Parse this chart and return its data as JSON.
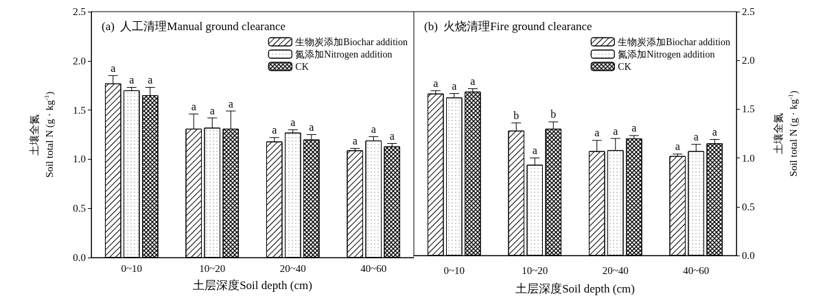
{
  "chart_data": [
    {
      "type": "bar",
      "title": "(a)  人工清理Manual ground clearance",
      "xlabel": "土层深度Soil depth (cm)",
      "ylabel": "土壤全氮\nSoil total N (g · kg$^{-1}$)",
      "categories": [
        "0~10",
        "10~20",
        "20~40",
        "40~60"
      ],
      "series": [
        {
          "name": "生物炭添加Biochar addition",
          "color": "#ffffff",
          "values": [
            1.77,
            1.31,
            1.18,
            1.09
          ],
          "errors": [
            0.08,
            0.15,
            0.04,
            0.02
          ],
          "value_labels": [
            "a",
            "a",
            "a",
            "a"
          ]
        },
        {
          "name": "氮添加Nitrogen addition",
          "color": "#ffffff",
          "values": [
            1.7,
            1.32,
            1.27,
            1.19
          ],
          "errors": [
            0.03,
            0.1,
            0.03,
            0.04
          ],
          "value_labels": [
            "a",
            "a",
            "a",
            "a"
          ]
        },
        {
          "name": "CK",
          "color": "#ffffff",
          "values": [
            1.65,
            1.31,
            1.2,
            1.13
          ],
          "errors": [
            0.08,
            0.18,
            0.05,
            0.03
          ],
          "value_labels": [
            "a",
            "a",
            "a",
            "a"
          ]
        }
      ],
      "ylim": [
        0,
        2.5
      ],
      "yticks": [
        {
          "value": 0,
          "label": "0.0"
        },
        {
          "value": 0.5,
          "label": "0.5"
        },
        {
          "value": 1,
          "label": "1.0"
        },
        {
          "value": 1.5,
          "label": "1.5"
        },
        {
          "value": 2,
          "label": "2.0"
        },
        {
          "value": 2.5,
          "label": "2.5"
        }
      ],
      "legend": "top right",
      "grid": false
    },
    {
      "type": "bar",
      "title": "(b)  火烧清理Fire ground clearance",
      "xlabel": "土层深度Soil depth (cm)",
      "y2label": "土壤全氮\nSoil total N (g · kg$^{-1}$)",
      "categories": [
        "0~10",
        "10~20",
        "20~40",
        "40~60"
      ],
      "series": [
        {
          "name": "生物炭添加Biochar addition",
          "color": "#ffffff",
          "axis": "y2",
          "values": [
            1.66,
            1.28,
            1.07,
            1.02
          ],
          "errors": [
            0.03,
            0.08,
            0.11,
            0.02
          ],
          "value_labels": [
            "a",
            "b",
            "a",
            "a"
          ]
        },
        {
          "name": "氮添加Nitrogen addition",
          "color": "#ffffff",
          "axis": "y2",
          "values": [
            1.62,
            0.93,
            1.08,
            1.07
          ],
          "errors": [
            0.04,
            0.07,
            0.12,
            0.07
          ],
          "value_labels": [
            "a",
            "a",
            "a",
            "a"
          ]
        },
        {
          "name": "CK",
          "color": "#ffffff",
          "axis": "y2",
          "values": [
            1.68,
            1.3,
            1.2,
            1.15
          ],
          "errors": [
            0.03,
            0.07,
            0.03,
            0.04
          ],
          "value_labels": [
            "a",
            "b",
            "a",
            "a"
          ]
        }
      ],
      "y2lim": [
        0,
        2.5
      ],
      "y2ticks": [
        {
          "value": 0,
          "label": "0.0"
        },
        {
          "value": 0.5,
          "label": "0.5"
        },
        {
          "value": 1,
          "label": "1.0"
        },
        {
          "value": 1.5,
          "label": "1.5"
        },
        {
          "value": 2,
          "label": "2.0"
        },
        {
          "value": 2.5,
          "label": "2.5"
        }
      ],
      "legend": "top right",
      "grid": false
    }
  ]
}
